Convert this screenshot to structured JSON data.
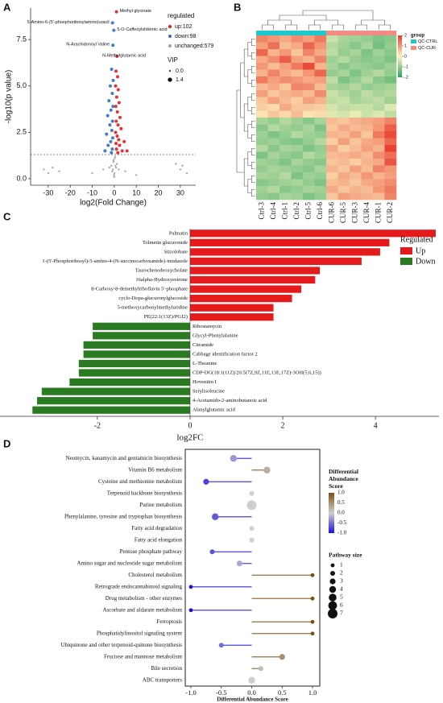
{
  "chart_data": [
    {
      "type": "scatter",
      "panel_label": "A",
      "xlabel": "log2(Fold Change)",
      "ylabel": "-log10(p value)",
      "xlim": [
        -38,
        37
      ],
      "ylim": [
        -0.35,
        9.2
      ],
      "xticks": [
        -30,
        -20,
        -10,
        0,
        10,
        20,
        30
      ],
      "yticks": [
        {
          "value": 0,
          "label": "0.0"
        },
        2.5,
        {
          "value": 5,
          "label": "5.0"
        },
        7.5
      ],
      "threshold": 1.3,
      "legend_title": "regulated",
      "series": [
        {
          "name": "up:102",
          "color": "#e8191c",
          "x": [
            1.0,
            1.2,
            0.8,
            1.5,
            0.6,
            1.8,
            1.1,
            2.2,
            0.7,
            1.4,
            2.6,
            0.9,
            1.7,
            3.1,
            0.6,
            1.3,
            2.0,
            4.5,
            0.8,
            2.4,
            1.0,
            3.6,
            5.8,
            1.6
          ],
          "values": [
            9.0,
            6.6,
            5.8,
            5.5,
            5.0,
            4.8,
            4.4,
            4.1,
            3.9,
            3.6,
            3.3,
            3.1,
            2.9,
            2.7,
            2.5,
            2.3,
            2.1,
            2.0,
            1.9,
            1.8,
            1.6,
            1.5,
            1.5,
            1.4
          ]
        },
        {
          "name": "down:98",
          "color": "#2e6bc8",
          "x": [
            -0.8,
            -0.2,
            -0.6,
            -1.2,
            -0.5,
            -1.8,
            -0.9,
            -2.4,
            -0.6,
            -1.5,
            -3.0,
            -0.8,
            -2.0,
            -1.1,
            -3.5,
            -0.7,
            -1.6,
            -2.8,
            -0.9,
            -1.3,
            -4.2
          ],
          "values": [
            8.4,
            8.0,
            7.2,
            5.9,
            5.3,
            5.0,
            4.6,
            4.2,
            3.9,
            3.7,
            3.4,
            3.1,
            2.9,
            2.6,
            2.4,
            2.2,
            2.0,
            1.8,
            1.6,
            1.4,
            1.5
          ]
        },
        {
          "name": "unchanged:579",
          "color": "#a0a0a0",
          "x": [
            0.2,
            -0.3,
            0.5,
            -0.6,
            0.1,
            -0.1,
            0.4,
            -0.4,
            0.8,
            -0.9,
            1.2,
            -1.3,
            2.0,
            -2.2,
            0.0,
            -28,
            -30,
            -25,
            -5,
            5,
            28,
            30,
            31,
            33,
            -32,
            10,
            -10
          ],
          "values": [
            1.1,
            0.9,
            0.7,
            0.5,
            0.3,
            0.2,
            1.2,
            1.0,
            0.6,
            0.4,
            0.8,
            0.7,
            0.5,
            0.6,
            0.1,
            0.6,
            0.3,
            0.4,
            0.5,
            0.4,
            0.8,
            0.5,
            0.7,
            0.3,
            0.5,
            0.2,
            0.3
          ]
        }
      ],
      "size_title": "VIP",
      "sizes": [
        {
          "value": 0,
          "label": "0.0"
        },
        1.4
      ],
      "annotations": [
        {
          "text": "Methyl glycinate",
          "x": 1.0,
          "y": 9.0,
          "color": "#e8191c"
        },
        {
          "text": "5-Amino-6-(5'-phosphoribosylamino)uracil",
          "x": -0.8,
          "y": 8.4,
          "color": "#2e6bc8"
        },
        {
          "text": "5-O-Caffeoylshikimic acid",
          "x": -0.2,
          "y": 8.0,
          "color": "#2e6bc8"
        },
        {
          "text": "N-Arachidonoyl Valine",
          "x": -0.6,
          "y": 7.2,
          "color": "#2e6bc8"
        },
        {
          "text": "N-Methylglutamic acid",
          "x": 1.2,
          "y": 6.6,
          "color": "#e8191c"
        }
      ]
    },
    {
      "type": "heatmap",
      "panel_label": "B",
      "columns": [
        "Ctrl-3",
        "Ctrl-4",
        "Ctrl-1",
        "Ctrl-2",
        "Ctrl-5",
        "Ctrl-6",
        "CUR-6",
        "CUR-5",
        "CUR-3",
        "CUR-4",
        "CUR-1",
        "CUR-2"
      ],
      "values": [
        [
          1.2,
          1.0,
          0.8,
          1.1,
          0.9,
          1.3,
          -0.5,
          -0.8,
          -0.9,
          -1.0,
          -1.2,
          -1.1
        ],
        [
          0.9,
          1.4,
          0.6,
          0.8,
          1.5,
          1.0,
          -0.7,
          -0.9,
          -1.1,
          -0.8,
          -1.3,
          -1.0
        ],
        [
          1.5,
          0.7,
          1.0,
          0.5,
          1.2,
          0.8,
          -0.6,
          -1.0,
          -0.8,
          -1.2,
          -0.9,
          -1.1
        ],
        [
          0.8,
          1.1,
          1.6,
          0.9,
          0.7,
          1.2,
          -0.9,
          -0.7,
          -1.0,
          -1.1,
          -1.0,
          -1.2
        ],
        [
          1.0,
          0.6,
          0.9,
          1.3,
          1.8,
          0.7,
          -0.8,
          -1.1,
          -0.9,
          -1.0,
          -1.1,
          -0.9
        ],
        [
          0.7,
          1.2,
          0.8,
          0.6,
          1.0,
          1.5,
          -1.0,
          -0.8,
          -1.2,
          -0.9,
          -0.7,
          -1.0
        ],
        [
          1.3,
          0.9,
          1.1,
          1.0,
          0.8,
          0.9,
          -0.6,
          -1.2,
          -1.0,
          -0.7,
          -1.1,
          -1.3
        ],
        [
          0.6,
          0.8,
          0.5,
          1.2,
          1.1,
          0.6,
          -0.8,
          -0.9,
          -0.7,
          -1.0,
          -0.9,
          -0.8
        ],
        [
          0.9,
          0.5,
          0.7,
          0.8,
          0.6,
          1.1,
          -0.5,
          -0.7,
          -0.9,
          -0.6,
          -0.8,
          -0.7
        ],
        [
          0.5,
          0.9,
          0.6,
          0.4,
          0.9,
          0.7,
          -0.6,
          -0.5,
          -0.8,
          -0.7,
          -0.6,
          -0.9
        ],
        [
          0.4,
          0.3,
          0.8,
          0.5,
          0.5,
          0.4,
          -0.4,
          -0.6,
          -0.5,
          -0.5,
          -0.7,
          -0.3
        ],
        [
          0.2,
          0.5,
          0.3,
          0.6,
          0.2,
          0.3,
          -0.3,
          -0.4,
          -0.2,
          -0.5,
          -0.3,
          -0.6
        ],
        [
          -0.8,
          -1.0,
          -0.7,
          -0.9,
          -1.1,
          -0.8,
          0.6,
          0.5,
          0.7,
          0.8,
          0.9,
          1.2
        ],
        [
          -1.1,
          -0.7,
          -0.9,
          -1.0,
          -0.8,
          -1.2,
          0.5,
          0.8,
          0.6,
          0.7,
          1.0,
          1.6
        ],
        [
          -0.9,
          -1.2,
          -1.0,
          -0.7,
          -0.9,
          -1.0,
          0.7,
          0.6,
          0.9,
          0.5,
          1.3,
          1.8
        ],
        [
          -1.0,
          -0.9,
          -1.1,
          -1.2,
          -1.0,
          -0.7,
          0.4,
          0.9,
          0.5,
          0.8,
          0.9,
          1.5
        ],
        [
          -0.7,
          -1.1,
          -0.8,
          -0.9,
          -1.2,
          -1.0,
          0.8,
          0.4,
          0.6,
          0.9,
          0.7,
          1.9
        ],
        [
          -1.2,
          -0.8,
          -1.0,
          -1.1,
          -0.7,
          -0.9,
          0.6,
          0.7,
          0.8,
          0.6,
          1.1,
          1.4
        ],
        [
          -0.9,
          -1.0,
          -1.2,
          -0.8,
          -1.0,
          -1.1,
          0.5,
          0.6,
          0.4,
          0.7,
          0.8,
          1.7
        ],
        [
          -1.0,
          -0.8,
          -0.9,
          -1.0,
          -1.1,
          -0.8,
          0.7,
          0.5,
          0.9,
          0.6,
          1.2,
          1.0
        ],
        [
          -0.8,
          -0.9,
          -0.7,
          -1.2,
          -0.9,
          -1.0,
          0.4,
          0.8,
          0.6,
          1.0,
          0.7,
          0.9
        ],
        [
          -1.1,
          -1.0,
          -0.9,
          -0.8,
          -1.0,
          -1.2,
          0.6,
          0.7,
          0.5,
          0.8,
          0.9,
          1.1
        ],
        [
          -0.9,
          -0.7,
          -1.1,
          -1.0,
          -0.8,
          -0.9,
          0.8,
          0.5,
          0.7,
          0.6,
          1.0,
          1.3
        ],
        [
          -1.0,
          -1.1,
          -0.8,
          -0.9,
          -1.2,
          -1.0,
          0.5,
          0.9,
          0.8,
          0.7,
          0.6,
          1.2
        ]
      ],
      "clim": [
        -2,
        2
      ],
      "colorticks": [
        2,
        1,
        0,
        -1,
        -2
      ],
      "colormap": [
        "#2ca25f",
        "#fdf5c0",
        "#e8382a"
      ],
      "legend_title": "group",
      "groups": [
        {
          "name": "QC-CTRL",
          "color": "#1ec8cc"
        },
        {
          "name": "QC-CUR",
          "color": "#f28b82"
        }
      ],
      "column_group": [
        0,
        0,
        0,
        0,
        0,
        0,
        1,
        1,
        1,
        1,
        1,
        1
      ]
    },
    {
      "type": "bar",
      "panel_label": "C",
      "xlabel": "log2FC",
      "categories": [
        "Palmatin",
        "Tolmetin glucuronide",
        "Stizolobate",
        "1-(5'-Phosphoribosyl)-5-amino-4-(N-succinocarboxamide)-imidazole",
        "Taurochenodeoxycholate",
        "16alpha-Hydroxyestrone",
        "8-Carboxy-8-demethylriboflavin 5'-phosphate",
        "cyclo-Dopa-glucuronylglucoside",
        "5-methoxycarbonylmethyluridine",
        "PE(22:1(13Z)/PGJ2)",
        "Ribostamycin",
        "Glycyl-Phenylalanine",
        "Citramide",
        "Cabbage identification factor 2",
        "L-Theanine",
        "CDP-DG(18:1(11Z)/20:5(7Z,9Z,11E,13E,17Z)-3OH(5,6,15))",
        "Hovenitin I",
        "Serylisoleucine",
        "4-Acetamido-2-aminobutanoic acid",
        "Alanylglutamic acid"
      ],
      "series": [
        {
          "name": "Up",
          "color": "#e41a1c",
          "values": [
            5.3,
            4.3,
            4.1,
            3.7,
            2.8,
            2.7,
            2.4,
            2.2,
            1.8,
            1.8,
            null,
            null,
            null,
            null,
            null,
            null,
            null,
            null,
            null,
            null
          ]
        },
        {
          "name": "Down",
          "color": "#2a7a22",
          "values": [
            null,
            null,
            null,
            null,
            null,
            null,
            null,
            null,
            null,
            null,
            -2.1,
            -2.1,
            -2.3,
            -2.3,
            -2.4,
            -2.4,
            -2.6,
            -3.2,
            -3.3,
            -3.4
          ]
        }
      ],
      "xlim": [
        -4.1,
        5.37
      ],
      "xticks": [
        -2,
        0,
        2,
        4
      ],
      "legend_title": "Regulated"
    },
    {
      "type": "lollipop",
      "panel_label": "D",
      "xlabel": "Differential Abundance Score",
      "categories": [
        "Neomycin, kanamycin and gentamicin biosynthesis",
        "Vitamin B6 metabolism",
        "Cysteine and methionine metabolism",
        "Terpenoid backbone biosynthesis",
        "Purine metabolism",
        "Phenylalanine, tyrosine and tryptophan biosynthesis",
        "Fatty acid degradation",
        "Fatty acid elongation",
        "Pentose phosphate pathway",
        "Amino sugar and nucleotide sugar metabolism",
        "Cholesterol metabolism",
        "Retrograde endocannabinoid signaling",
        "Drug metabolism - other enzymes",
        "Ascorbate and aldarate metabolism",
        "Ferroptosis",
        "Phosphatidylinositol signaling system",
        "Ubiquinone and other terpenoid-quinone biosynthesis",
        "Fructose and mannose metabolism",
        "Bile secretion",
        "ABC transporters"
      ],
      "values": [
        -0.3,
        0.25,
        -0.75,
        0.0,
        0.0,
        -0.6,
        0.0,
        0.0,
        -0.65,
        -0.2,
        1.0,
        -1.0,
        1.0,
        -1.0,
        1.0,
        1.0,
        -0.5,
        0.5,
        0.15,
        0.0
      ],
      "sizes": [
        4,
        4,
        3,
        2,
        7,
        4,
        2,
        2,
        2,
        3,
        1,
        1,
        1,
        1,
        1,
        1,
        2,
        3,
        2,
        4
      ],
      "xlim": [
        -1.093,
        1.119
      ],
      "xticks": [
        {
          "value": -1,
          "label": "-1.0"
        },
        -0.5,
        {
          "value": 0,
          "label": "0.0"
        },
        0.5,
        {
          "value": 1,
          "label": "1.0"
        }
      ],
      "clim": [
        -1,
        1
      ],
      "colormap": [
        "#1a10e0",
        "#cfcfcf",
        "#7d4f12"
      ],
      "color_title": "Differential Abundance Score",
      "colorticks": [
        {
          "value": 1,
          "label": "1.0"
        },
        0.5,
        {
          "value": 0,
          "label": "0.0"
        },
        -0.5,
        {
          "value": -1,
          "label": "-1.0"
        }
      ],
      "size_title": "Pathway size",
      "size_legend": [
        1,
        2,
        3,
        4,
        5,
        6,
        7
      ]
    }
  ]
}
